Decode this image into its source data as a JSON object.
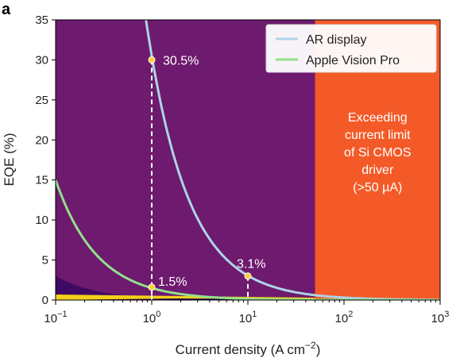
{
  "panel_label": "a",
  "chart_data": {
    "type": "line",
    "xlabel": "Current density (A cm",
    "xlabel_sup": "−2",
    "xlabel_end": ")",
    "ylabel": "EQE (%)",
    "xscale": "log",
    "xlim": [
      0.1,
      1000
    ],
    "ylim": [
      0,
      35
    ],
    "yticks": [
      0,
      5,
      10,
      15,
      20,
      25,
      30,
      35
    ],
    "xticks": [
      {
        "value": 0.1,
        "base": "10",
        "exp": "−1"
      },
      {
        "value": 1,
        "base": "10",
        "exp": "0"
      },
      {
        "value": 10,
        "base": "10",
        "exp": "1"
      },
      {
        "value": 100,
        "base": "10",
        "exp": "2"
      },
      {
        "value": 1000,
        "base": "10",
        "exp": "3"
      }
    ],
    "background_contours": {
      "colors": [
        "#3f0a63",
        "#6e1a6e",
        "#8c2468",
        "#b83a5c",
        "#e0584a",
        "#f26a30",
        "#f79a12"
      ],
      "constants": [
        0.04,
        0.3,
        1.6,
        12,
        60,
        250,
        500
      ]
    },
    "series": [
      {
        "name": "AR display",
        "color": "#aed4e6",
        "constant": 30.5
      },
      {
        "name": "Apple Vision Pro",
        "color": "#93e08a",
        "constant": 1.5
      }
    ],
    "points": [
      {
        "x": 1,
        "y": 30,
        "label": "30.5%"
      },
      {
        "x": 1,
        "y": 1.6,
        "label": "1.5%"
      },
      {
        "x": 10,
        "y": 3.0,
        "label": "3.1%"
      }
    ],
    "limit_region": {
      "x_start": 50,
      "color": "#f45a28",
      "text": [
        "Exceeding",
        "current limit",
        "of Si CMOS",
        "driver",
        "(>50 µA)"
      ]
    },
    "legend_position": "top-right"
  }
}
